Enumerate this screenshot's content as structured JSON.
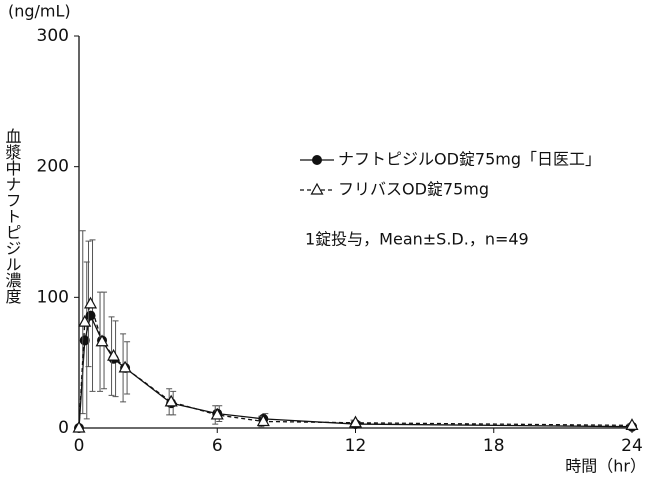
{
  "chart_data": {
    "type": "line",
    "y_unit": "(ng/mL)",
    "ylabel": "血漿中ナフトピジル濃度",
    "xlabel": "時間（hr）",
    "annotation": "1錠投与，Mean±S.D.，n=49",
    "x": [
      0,
      0.25,
      0.5,
      1,
      1.5,
      2,
      4,
      6,
      8,
      12,
      24
    ],
    "xlim": [
      0,
      24
    ],
    "xticks": [
      0,
      6,
      12,
      18,
      24
    ],
    "ylim": [
      0,
      300
    ],
    "yticks": [
      0,
      100,
      200,
      300
    ],
    "series": [
      {
        "name": "ナフトピジルOD錠75mg「日医工」",
        "color": "#111111",
        "marker": "circle",
        "dash": "solid",
        "values": [
          0,
          67,
          86,
          67,
          53,
          46,
          19,
          11,
          7,
          3,
          1
        ],
        "errors": [
          0,
          60,
          58,
          37,
          29,
          20,
          9,
          6,
          4,
          2,
          1
        ]
      },
      {
        "name": "フリバスOD錠75mg",
        "color": "#111111",
        "marker": "triangle",
        "dash": "dashed",
        "values": [
          0,
          81,
          95,
          66,
          55,
          46,
          20,
          10,
          5,
          4,
          2
        ],
        "errors": [
          0,
          70,
          48,
          38,
          30,
          26,
          10,
          7,
          4,
          2,
          1
        ]
      }
    ]
  }
}
